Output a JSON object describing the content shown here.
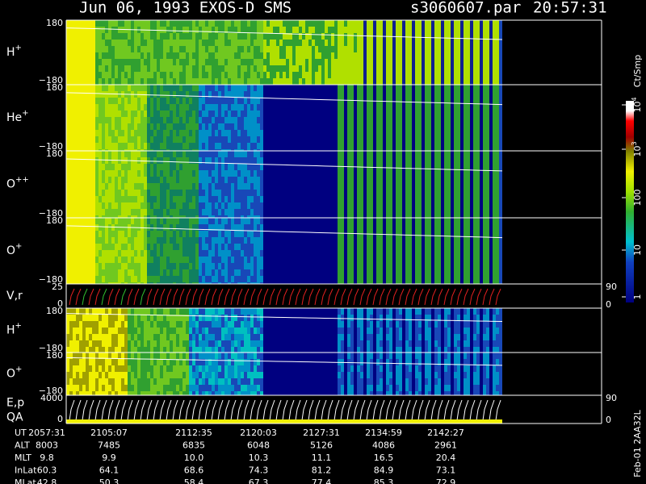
{
  "header": {
    "title": "Jun 06, 1993   EXOS-D SMS",
    "file": "s3060607.par",
    "time": "20:57:31"
  },
  "panels": [
    {
      "label": "H",
      "sup": "+",
      "ticks_left": [
        "180",
        "−180"
      ]
    },
    {
      "label": "He",
      "sup": "+",
      "ticks_left": [
        "180",
        "−180"
      ]
    },
    {
      "label": "O",
      "sup": "++",
      "ticks_left": [
        "180",
        "−180"
      ]
    },
    {
      "label": "O",
      "sup": "+",
      "ticks_left": [
        "180",
        "−180"
      ]
    },
    {
      "label": "V,r",
      "ticks_left": [
        "25",
        "0"
      ],
      "ticks_right": [
        "90",
        "0"
      ]
    },
    {
      "label": "H",
      "sup": "+",
      "ticks_left": [
        "180",
        "−180"
      ]
    },
    {
      "label": "O",
      "sup": "+",
      "ticks_left": [
        "180",
        "−180"
      ]
    },
    {
      "label": "E,p",
      "label2": "QA",
      "ticks_left": [
        "4000",
        "0"
      ],
      "ticks_right": [
        "90",
        "0"
      ]
    }
  ],
  "colorbar": {
    "unit": "Ct/Smp",
    "ticks": [
      {
        "base": "1"
      },
      {
        "base": "10"
      },
      {
        "base": "100"
      },
      {
        "base": "10",
        "exp": "3"
      },
      {
        "base": "10",
        "exp": "4"
      }
    ]
  },
  "footer": {
    "rows": [
      {
        "label": "UT",
        "values": [
          "2057:31",
          "2105:07",
          "2112:35",
          "2120:03",
          "2127:31",
          "2134:59",
          "2142:27"
        ]
      },
      {
        "label": "ALT",
        "values": [
          "8003",
          "7485",
          "6835",
          "6048",
          "5126",
          "4086",
          "2961"
        ]
      },
      {
        "label": "MLT",
        "values": [
          "9.8",
          "9.9",
          "10.0",
          "10.3",
          "11.1",
          "16.5",
          "20.4"
        ]
      },
      {
        "label": "InLat",
        "values": [
          "60.3",
          "64.1",
          "68.6",
          "74.3",
          "81.2",
          "84.9",
          "73.1"
        ]
      },
      {
        "label": "MLat",
        "values": [
          "42.8",
          "50.3",
          "58.4",
          "67.3",
          "77.4",
          "85.3",
          "72.9"
        ]
      }
    ]
  },
  "stamp": "Feb-01 2AA32L"
}
